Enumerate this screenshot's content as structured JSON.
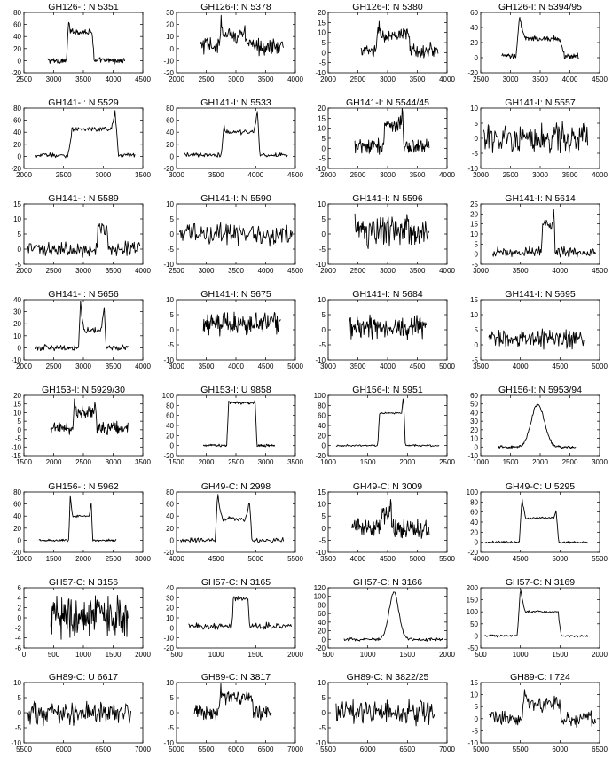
{
  "chart_data": [
    {
      "type": "line",
      "title": "GH126-I: N 5351",
      "xlim": [
        2500,
        4500
      ],
      "ylim": [
        -20,
        80
      ],
      "xticks": [
        2500,
        3000,
        3500,
        4000,
        4500
      ],
      "yticks": [
        -20,
        0,
        20,
        40,
        60,
        80
      ],
      "profile": {
        "kind": "box",
        "x0": 2900,
        "x1": 4200,
        "base": 0,
        "noise": 4,
        "lo": 3250,
        "hi": 3650,
        "level": 48,
        "peakL": 68,
        "peakR": 48
      }
    },
    {
      "type": "line",
      "title": "GH126-I: N 5378",
      "xlim": [
        2000,
        4000
      ],
      "ylim": [
        -20,
        30
      ],
      "xticks": [
        2000,
        2500,
        3000,
        3500,
        4000
      ],
      "yticks": [
        -20,
        -10,
        0,
        10,
        20,
        30
      ],
      "profile": {
        "kind": "box",
        "x0": 2400,
        "x1": 3800,
        "base": 2,
        "noise": 6,
        "lo": 2750,
        "hi": 3150,
        "level": 12,
        "peakL": 20,
        "peakR": 15
      }
    },
    {
      "type": "line",
      "title": "GH126-I: N 5380",
      "xlim": [
        2000,
        4000
      ],
      "ylim": [
        -10,
        20
      ],
      "xticks": [
        2000,
        2500,
        3000,
        3500,
        4000
      ],
      "yticks": [
        -10,
        -5,
        0,
        5,
        10,
        15,
        20
      ],
      "profile": {
        "kind": "box",
        "x0": 2550,
        "x1": 3850,
        "base": 1,
        "noise": 3,
        "lo": 2850,
        "hi": 3350,
        "level": 8,
        "peakL": 14,
        "peakR": 12
      }
    },
    {
      "type": "line",
      "title": "GH126-I: N 5394/95",
      "xlim": [
        2500,
        4500
      ],
      "ylim": [
        -20,
        60
      ],
      "xticks": [
        2500,
        3000,
        3500,
        4000,
        4500
      ],
      "yticks": [
        -20,
        0,
        20,
        40,
        60
      ],
      "profile": {
        "kind": "box",
        "x0": 2850,
        "x1": 4150,
        "base": 2,
        "noise": 3,
        "lo": 3150,
        "hi": 3850,
        "level": 25,
        "peakL": 55,
        "peakR": 20
      }
    },
    {
      "type": "line",
      "title": "GH141-I: N 5529",
      "xlim": [
        2000,
        3500
      ],
      "ylim": [
        -20,
        80
      ],
      "xticks": [
        2000,
        2500,
        3000,
        3500
      ],
      "yticks": [
        -20,
        0,
        20,
        40,
        60,
        80
      ],
      "profile": {
        "kind": "box",
        "x0": 2150,
        "x1": 3400,
        "base": 2,
        "noise": 3,
        "lo": 2600,
        "hi": 3150,
        "level": 45,
        "peakL": 35,
        "peakR": 75
      }
    },
    {
      "type": "line",
      "title": "GH141-I: N 5533",
      "xlim": [
        3000,
        4500
      ],
      "ylim": [
        -20,
        80
      ],
      "xticks": [
        3000,
        3500,
        4000,
        4500
      ],
      "yticks": [
        -20,
        0,
        20,
        40,
        60,
        80
      ],
      "profile": {
        "kind": "box",
        "x0": 3100,
        "x1": 4400,
        "base": 2,
        "noise": 3,
        "lo": 3600,
        "hi": 4020,
        "level": 40,
        "peakL": 52,
        "peakR": 75
      }
    },
    {
      "type": "line",
      "title": "GH141-I: N 5544/45",
      "xlim": [
        2000,
        4000
      ],
      "ylim": [
        -10,
        20
      ],
      "xticks": [
        2000,
        2500,
        3000,
        3500,
        4000
      ],
      "yticks": [
        -10,
        -5,
        0,
        5,
        10,
        15,
        20
      ],
      "profile": {
        "kind": "box",
        "x0": 2450,
        "x1": 3700,
        "base": 1,
        "noise": 3,
        "lo": 2950,
        "hi": 3250,
        "level": 12,
        "peakL": 10,
        "peakR": 19
      }
    },
    {
      "type": "line",
      "title": "GH141-I: N 5557",
      "xlim": [
        2000,
        4000
      ],
      "ylim": [
        -10,
        10
      ],
      "xticks": [
        2000,
        2500,
        3000,
        3500,
        4000
      ],
      "yticks": [
        -10,
        -5,
        0,
        5,
        10
      ],
      "profile": {
        "kind": "noise",
        "x0": 2050,
        "x1": 3800,
        "base": 0,
        "noise": 4
      }
    },
    {
      "type": "line",
      "title": "GH141-I: N 5589",
      "xlim": [
        2000,
        4000
      ],
      "ylim": [
        -5,
        15
      ],
      "xticks": [
        2000,
        2500,
        3000,
        3500,
        4000
      ],
      "yticks": [
        -5,
        0,
        5,
        10,
        15
      ],
      "profile": {
        "kind": "box",
        "x0": 2050,
        "x1": 3950,
        "base": 0,
        "noise": 2,
        "lo": 3250,
        "hi": 3400,
        "level": 7,
        "peakL": 11,
        "peakR": 8
      }
    },
    {
      "type": "line",
      "title": "GH141-I: N 5590",
      "xlim": [
        2500,
        4500
      ],
      "ylim": [
        -10,
        10
      ],
      "xticks": [
        2500,
        3000,
        3500,
        4000,
        4500
      ],
      "yticks": [
        -10,
        -5,
        0,
        5,
        10
      ],
      "profile": {
        "kind": "noise",
        "x0": 2550,
        "x1": 4450,
        "base": 0,
        "noise": 3
      }
    },
    {
      "type": "line",
      "title": "GH141-I: N 5596",
      "xlim": [
        2000,
        4000
      ],
      "ylim": [
        -10,
        10
      ],
      "xticks": [
        2000,
        2500,
        3000,
        3500,
        4000
      ],
      "yticks": [
        -10,
        -5,
        0,
        5,
        10
      ],
      "profile": {
        "kind": "noise",
        "x0": 2450,
        "x1": 3700,
        "base": 1,
        "noise": 4
      }
    },
    {
      "type": "line",
      "title": "GH141-I: N 5614",
      "xlim": [
        3000,
        4500
      ],
      "ylim": [
        -5,
        25
      ],
      "xticks": [
        3000,
        3500,
        4000,
        4500
      ],
      "yticks": [
        -5,
        0,
        5,
        10,
        15,
        20,
        25
      ],
      "profile": {
        "kind": "box",
        "x0": 3150,
        "x1": 4450,
        "base": 1,
        "noise": 2,
        "lo": 3780,
        "hi": 3920,
        "level": 15,
        "peakL": 12,
        "peakR": 23
      }
    },
    {
      "type": "line",
      "title": "GH141-I: N 5656",
      "xlim": [
        2000,
        4000
      ],
      "ylim": [
        -10,
        40
      ],
      "xticks": [
        2000,
        2500,
        3000,
        3500,
        4000
      ],
      "yticks": [
        -10,
        0,
        10,
        20,
        30,
        40
      ],
      "profile": {
        "kind": "box",
        "x0": 2200,
        "x1": 3750,
        "base": 0,
        "noise": 2,
        "lo": 2950,
        "hi": 3350,
        "level": 15,
        "peakL": 38,
        "peakR": 34
      }
    },
    {
      "type": "line",
      "title": "GH141-I: N 5675",
      "xlim": [
        3000,
        5000
      ],
      "ylim": [
        -10,
        10
      ],
      "xticks": [
        3000,
        3500,
        4000,
        4500,
        5000
      ],
      "yticks": [
        -10,
        -5,
        0,
        5,
        10
      ],
      "profile": {
        "kind": "noise",
        "x0": 3450,
        "x1": 4750,
        "base": 2,
        "noise": 3
      }
    },
    {
      "type": "line",
      "title": "GH141-I: N 5684",
      "xlim": [
        3000,
        5000
      ],
      "ylim": [
        -10,
        10
      ],
      "xticks": [
        3000,
        3500,
        4000,
        4500,
        5000
      ],
      "yticks": [
        -10,
        -5,
        0,
        5,
        10
      ],
      "profile": {
        "kind": "noise",
        "x0": 3350,
        "x1": 4650,
        "base": 1,
        "noise": 3
      }
    },
    {
      "type": "line",
      "title": "GH141-I: N 5695",
      "xlim": [
        3500,
        5000
      ],
      "ylim": [
        -5,
        15
      ],
      "xticks": [
        3500,
        4000,
        4500,
        5000
      ],
      "yticks": [
        -5,
        0,
        5,
        10,
        15
      ],
      "profile": {
        "kind": "noise",
        "x0": 3600,
        "x1": 4800,
        "base": 2,
        "noise": 2.5
      }
    },
    {
      "type": "line",
      "title": "GH153-I: N 5929/30",
      "xlim": [
        1500,
        3500
      ],
      "ylim": [
        -15,
        20
      ],
      "xticks": [
        1500,
        2000,
        2500,
        3000,
        3500
      ],
      "yticks": [
        -15,
        -10,
        -5,
        0,
        5,
        10,
        15,
        20
      ],
      "profile": {
        "kind": "box",
        "x0": 1950,
        "x1": 3250,
        "base": 1,
        "noise": 3,
        "lo": 2350,
        "hi": 2700,
        "level": 10,
        "peakL": 16,
        "peakR": 14
      }
    },
    {
      "type": "line",
      "title": "GH153-I: U 9858",
      "xlim": [
        1500,
        3500
      ],
      "ylim": [
        -20,
        100
      ],
      "xticks": [
        1500,
        2000,
        2500,
        3000,
        3500
      ],
      "yticks": [
        -20,
        0,
        20,
        40,
        60,
        80,
        100
      ],
      "profile": {
        "kind": "box",
        "x0": 1950,
        "x1": 3150,
        "base": 0,
        "noise": 2,
        "lo": 2380,
        "hi": 2820,
        "level": 85,
        "peakL": 92,
        "peakR": 95
      }
    },
    {
      "type": "line",
      "title": "GH156-I: N 5951",
      "xlim": [
        1000,
        2500
      ],
      "ylim": [
        -20,
        100
      ],
      "xticks": [
        1000,
        1500,
        2000,
        2500
      ],
      "yticks": [
        -20,
        0,
        20,
        40,
        60,
        80,
        100
      ],
      "profile": {
        "kind": "box",
        "x0": 1100,
        "x1": 2400,
        "base": 0,
        "noise": 1.5,
        "lo": 1650,
        "hi": 1950,
        "level": 65,
        "peakL": 70,
        "peakR": 100
      }
    },
    {
      "type": "line",
      "title": "GH156-I: N 5953/94",
      "xlim": [
        1000,
        3000
      ],
      "ylim": [
        -10,
        60
      ],
      "xticks": [
        1000,
        1500,
        2000,
        2500,
        3000
      ],
      "yticks": [
        -10,
        0,
        10,
        20,
        30,
        40,
        50,
        60
      ],
      "profile": {
        "kind": "gauss",
        "x0": 1300,
        "x1": 2600,
        "base": 0,
        "noise": 1.5,
        "center": 1960,
        "width": 110,
        "amp": 50
      }
    },
    {
      "type": "line",
      "title": "GH156-I: N 5962",
      "xlim": [
        1000,
        3000
      ],
      "ylim": [
        -20,
        80
      ],
      "xticks": [
        1000,
        1500,
        2000,
        2500,
        3000
      ],
      "yticks": [
        -20,
        0,
        20,
        40,
        60,
        80
      ],
      "profile": {
        "kind": "box",
        "x0": 1250,
        "x1": 2550,
        "base": 0,
        "noise": 1.5,
        "lo": 1780,
        "hi": 2130,
        "level": 40,
        "peakL": 75,
        "peakR": 65
      }
    },
    {
      "type": "line",
      "title": "GH49-C: N 2998",
      "xlim": [
        4000,
        5500
      ],
      "ylim": [
        -20,
        80
      ],
      "xticks": [
        4000,
        4500,
        5000,
        5500
      ],
      "yticks": [
        -20,
        0,
        20,
        40,
        60,
        80
      ],
      "profile": {
        "kind": "box",
        "x0": 4050,
        "x1": 5350,
        "base": 0,
        "noise": 3,
        "lo": 4520,
        "hi": 4920,
        "level": 35,
        "peakL": 78,
        "peakR": 68
      }
    },
    {
      "type": "line",
      "title": "GH49-C: N 3009",
      "xlim": [
        3500,
        5500
      ],
      "ylim": [
        -10,
        15
      ],
      "xticks": [
        3500,
        4000,
        4500,
        5000,
        5500
      ],
      "yticks": [
        -10,
        -5,
        0,
        5,
        10,
        15
      ],
      "profile": {
        "kind": "box",
        "x0": 3900,
        "x1": 5200,
        "base": 0,
        "noise": 3,
        "lo": 4400,
        "hi": 4550,
        "level": 6,
        "peakL": 8,
        "peakR": 14
      }
    },
    {
      "type": "line",
      "title": "GH49-C: U 5295",
      "xlim": [
        4000,
        5500
      ],
      "ylim": [
        -20,
        100
      ],
      "xticks": [
        4000,
        4500,
        5000,
        5500
      ],
      "yticks": [
        -20,
        0,
        20,
        40,
        60,
        80,
        100
      ],
      "profile": {
        "kind": "box",
        "x0": 4050,
        "x1": 5350,
        "base": 0,
        "noise": 2,
        "lo": 4520,
        "hi": 4950,
        "level": 48,
        "peakL": 88,
        "peakR": 65
      }
    },
    {
      "type": "line",
      "title": "GH57-C: N 3156",
      "xlim": [
        0,
        2000
      ],
      "ylim": [
        -6,
        6
      ],
      "xticks": [
        0,
        500,
        1000,
        1500,
        2000
      ],
      "yticks": [
        -6,
        -4,
        -2,
        0,
        2,
        4,
        6
      ],
      "profile": {
        "kind": "noise",
        "x0": 450,
        "x1": 1750,
        "base": 0,
        "noise": 3.5
      }
    },
    {
      "type": "line",
      "title": "GH57-C: N 3165",
      "xlim": [
        500,
        2000
      ],
      "ylim": [
        -20,
        40
      ],
      "xticks": [
        500,
        1000,
        1500,
        2000
      ],
      "yticks": [
        -20,
        -10,
        0,
        10,
        20,
        30,
        40
      ],
      "profile": {
        "kind": "box",
        "x0": 650,
        "x1": 1950,
        "base": 2,
        "noise": 2.5,
        "lo": 1220,
        "hi": 1400,
        "level": 30,
        "peakL": 35,
        "peakR": 32
      }
    },
    {
      "type": "line",
      "title": "GH57-C: N 3166",
      "xlim": [
        500,
        2000
      ],
      "ylim": [
        -20,
        120
      ],
      "xticks": [
        500,
        1000,
        1500,
        2000
      ],
      "yticks": [
        -20,
        0,
        20,
        40,
        60,
        80,
        100,
        120
      ],
      "profile": {
        "kind": "gauss",
        "x0": 700,
        "x1": 1950,
        "base": 0,
        "noise": 3,
        "center": 1330,
        "width": 60,
        "amp": 110
      }
    },
    {
      "type": "line",
      "title": "GH57-C: N 3169",
      "xlim": [
        500,
        2000
      ],
      "ylim": [
        -50,
        200
      ],
      "xticks": [
        500,
        1000,
        1500,
        2000
      ],
      "yticks": [
        -50,
        0,
        50,
        100,
        150,
        200
      ],
      "profile": {
        "kind": "box",
        "x0": 550,
        "x1": 1850,
        "base": 0,
        "noise": 4,
        "lo": 1000,
        "hi": 1480,
        "level": 100,
        "peakL": 200,
        "peakR": 80
      }
    },
    {
      "type": "line",
      "title": "GH89-C: U 6617",
      "xlim": [
        5500,
        7000
      ],
      "ylim": [
        -10,
        10
      ],
      "xticks": [
        5500,
        6000,
        6500,
        7000
      ],
      "yticks": [
        -10,
        -5,
        0,
        5,
        10
      ],
      "profile": {
        "kind": "noise",
        "x0": 5550,
        "x1": 6850,
        "base": 0,
        "noise": 3
      }
    },
    {
      "type": "line",
      "title": "GH89-C: N 3817",
      "xlim": [
        5000,
        7000
      ],
      "ylim": [
        -10,
        10
      ],
      "xticks": [
        5000,
        5500,
        6000,
        6500,
        7000
      ],
      "yticks": [
        -10,
        -5,
        0,
        5,
        10
      ],
      "profile": {
        "kind": "box",
        "x0": 5300,
        "x1": 6600,
        "base": 0,
        "noise": 2,
        "lo": 5750,
        "hi": 6250,
        "level": 5,
        "peakL": 8,
        "peakR": 6
      }
    },
    {
      "type": "line",
      "title": "GH89-C: N 3822/25",
      "xlim": [
        5500,
        7000
      ],
      "ylim": [
        -10,
        10
      ],
      "xticks": [
        5500,
        6000,
        6500,
        7000
      ],
      "yticks": [
        -10,
        -5,
        0,
        5,
        10
      ],
      "profile": {
        "kind": "noise",
        "x0": 5600,
        "x1": 6850,
        "base": 0,
        "noise": 3
      }
    },
    {
      "type": "line",
      "title": "GH89-C: I 724",
      "xlim": [
        5000,
        6500
      ],
      "ylim": [
        -10,
        15
      ],
      "xticks": [
        5000,
        5500,
        6000,
        6500
      ],
      "yticks": [
        -10,
        -5,
        0,
        5,
        10,
        15
      ],
      "profile": {
        "kind": "box",
        "x0": 5100,
        "x1": 6450,
        "base": 0,
        "noise": 2.5,
        "lo": 5550,
        "hi": 5980,
        "level": 6,
        "peakL": 12,
        "peakR": 9
      }
    }
  ]
}
